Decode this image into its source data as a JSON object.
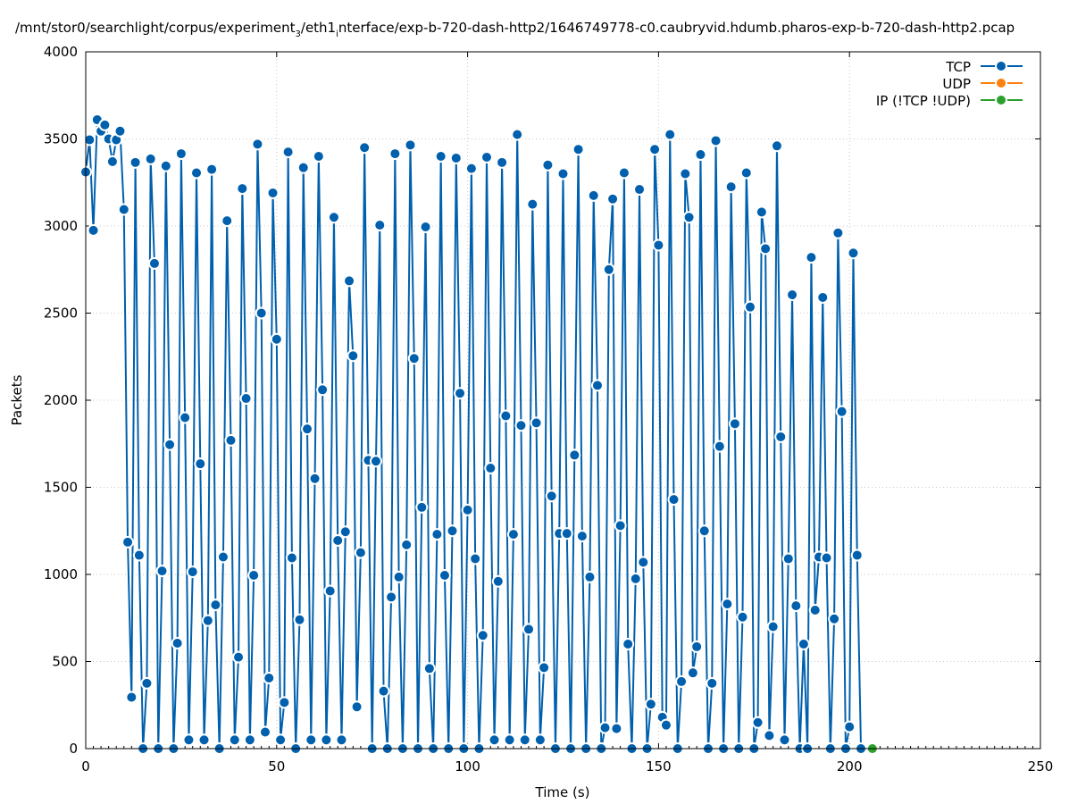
{
  "chart_data": {
    "type": "line",
    "title": "/mnt/stor0/searchlight/corpus/experiment",
    "title_sub": "3",
    "title_after_sub": "/eth1",
    "title_sub2": "i",
    "title_rest": "nterface/exp-b-720-dash-http2/1646749778-c0.caubryvid.hdumb.pharos-exp-b-720-dash-http2.pcap",
    "xlabel": "Time (s)",
    "ylabel": "Packets",
    "xlim": [
      0,
      250
    ],
    "ylim": [
      0,
      4000
    ],
    "xticks": [
      0,
      50,
      100,
      150,
      200,
      250
    ],
    "yticks": [
      0,
      500,
      1000,
      1500,
      2000,
      2500,
      3000,
      3500,
      4000
    ],
    "xtick_labels": [
      "0",
      "50",
      "100",
      "150",
      "200",
      "250"
    ],
    "ytick_labels": [
      "0",
      "500",
      "1000",
      "1500",
      "2000",
      "2500",
      "3000",
      "3500",
      "4000"
    ],
    "grid": true,
    "legend_position": "top-right",
    "series": [
      {
        "name": "TCP",
        "color": "#0060ad",
        "points": [
          [
            0,
            3310
          ],
          [
            1,
            3495
          ],
          [
            2,
            2975
          ],
          [
            3,
            3610
          ],
          [
            4,
            3545
          ],
          [
            5,
            3580
          ],
          [
            6,
            3500
          ],
          [
            7,
            3370
          ],
          [
            8,
            3495
          ],
          [
            9,
            3545
          ],
          [
            10,
            3095
          ],
          [
            11,
            1185
          ],
          [
            12,
            295
          ],
          [
            13,
            3365
          ],
          [
            14,
            1110
          ],
          [
            15,
            0
          ],
          [
            16,
            375
          ],
          [
            17,
            3385
          ],
          [
            18,
            2785
          ],
          [
            19,
            0
          ],
          [
            20,
            1020
          ],
          [
            21,
            3345
          ],
          [
            22,
            1745
          ],
          [
            23,
            0
          ],
          [
            24,
            605
          ],
          [
            25,
            3415
          ],
          [
            26,
            1900
          ],
          [
            27,
            50
          ],
          [
            28,
            1015
          ],
          [
            29,
            3305
          ],
          [
            30,
            1635
          ],
          [
            31,
            50
          ],
          [
            32,
            735
          ],
          [
            33,
            3325
          ],
          [
            34,
            825
          ],
          [
            35,
            0
          ],
          [
            36,
            1100
          ],
          [
            37,
            3030
          ],
          [
            38,
            1770
          ],
          [
            39,
            50
          ],
          [
            40,
            525
          ],
          [
            41,
            3215
          ],
          [
            42,
            2010
          ],
          [
            43,
            50
          ],
          [
            44,
            995
          ],
          [
            45,
            3470
          ],
          [
            46,
            2500
          ],
          [
            47,
            95
          ],
          [
            48,
            405
          ],
          [
            49,
            3190
          ],
          [
            50,
            2350
          ],
          [
            51,
            50
          ],
          [
            52,
            265
          ],
          [
            53,
            3425
          ],
          [
            54,
            1095
          ],
          [
            55,
            0
          ],
          [
            56,
            740
          ],
          [
            57,
            3335
          ],
          [
            58,
            1835
          ],
          [
            59,
            50
          ],
          [
            60,
            1550
          ],
          [
            61,
            3400
          ],
          [
            62,
            2060
          ],
          [
            63,
            50
          ],
          [
            64,
            905
          ],
          [
            65,
            3050
          ],
          [
            66,
            1195
          ],
          [
            67,
            50
          ],
          [
            68,
            1245
          ],
          [
            69,
            2685
          ],
          [
            70,
            2255
          ],
          [
            71,
            240
          ],
          [
            72,
            1125
          ],
          [
            73,
            3450
          ],
          [
            74,
            1655
          ],
          [
            75,
            0
          ],
          [
            76,
            1650
          ],
          [
            77,
            3005
          ],
          [
            78,
            330
          ],
          [
            79,
            0
          ],
          [
            80,
            870
          ],
          [
            81,
            3415
          ],
          [
            82,
            985
          ],
          [
            83,
            0
          ],
          [
            84,
            1170
          ],
          [
            85,
            3465
          ],
          [
            86,
            2240
          ],
          [
            87,
            0
          ],
          [
            88,
            1385
          ],
          [
            89,
            2995
          ],
          [
            90,
            460
          ],
          [
            91,
            0
          ],
          [
            92,
            1230
          ],
          [
            93,
            3400
          ],
          [
            94,
            995
          ],
          [
            95,
            0
          ],
          [
            96,
            1250
          ],
          [
            97,
            3390
          ],
          [
            98,
            2040
          ],
          [
            99,
            0
          ],
          [
            100,
            1370
          ],
          [
            101,
            3330
          ],
          [
            102,
            1090
          ],
          [
            103,
            0
          ],
          [
            104,
            650
          ],
          [
            105,
            3395
          ],
          [
            106,
            1610
          ],
          [
            107,
            50
          ],
          [
            108,
            960
          ],
          [
            109,
            3365
          ],
          [
            110,
            1910
          ],
          [
            111,
            50
          ],
          [
            112,
            1230
          ],
          [
            113,
            3525
          ],
          [
            114,
            1855
          ],
          [
            115,
            50
          ],
          [
            116,
            685
          ],
          [
            117,
            3125
          ],
          [
            118,
            1870
          ],
          [
            119,
            50
          ],
          [
            120,
            465
          ],
          [
            121,
            3350
          ],
          [
            122,
            1450
          ],
          [
            123,
            0
          ],
          [
            124,
            1235
          ],
          [
            125,
            3300
          ],
          [
            126,
            1235
          ],
          [
            127,
            0
          ],
          [
            128,
            1685
          ],
          [
            129,
            3440
          ],
          [
            130,
            1220
          ],
          [
            131,
            0
          ],
          [
            132,
            985
          ],
          [
            133,
            3175
          ],
          [
            134,
            2085
          ],
          [
            135,
            0
          ],
          [
            136,
            120
          ],
          [
            137,
            2750
          ],
          [
            138,
            3155
          ],
          [
            139,
            115
          ],
          [
            140,
            1280
          ],
          [
            141,
            3305
          ],
          [
            142,
            600
          ],
          [
            143,
            0
          ],
          [
            144,
            975
          ],
          [
            145,
            3210
          ],
          [
            146,
            1070
          ],
          [
            147,
            0
          ],
          [
            148,
            255
          ],
          [
            149,
            3440
          ],
          [
            150,
            2890
          ],
          [
            151,
            180
          ],
          [
            152,
            135
          ],
          [
            153,
            3525
          ],
          [
            154,
            1430
          ],
          [
            155,
            0
          ],
          [
            156,
            385
          ],
          [
            157,
            3300
          ],
          [
            158,
            3050
          ],
          [
            159,
            435
          ],
          [
            160,
            585
          ],
          [
            161,
            3410
          ],
          [
            162,
            1250
          ],
          [
            163,
            0
          ],
          [
            164,
            375
          ],
          [
            165,
            3490
          ],
          [
            166,
            1735
          ],
          [
            167,
            0
          ],
          [
            168,
            830
          ],
          [
            169,
            3225
          ],
          [
            170,
            1865
          ],
          [
            171,
            0
          ],
          [
            172,
            755
          ],
          [
            173,
            3305
          ],
          [
            174,
            2535
          ],
          [
            175,
            0
          ],
          [
            176,
            150
          ],
          [
            177,
            3080
          ],
          [
            178,
            2870
          ],
          [
            179,
            75
          ],
          [
            180,
            700
          ],
          [
            181,
            3460
          ],
          [
            182,
            1790
          ],
          [
            183,
            50
          ],
          [
            184,
            1090
          ],
          [
            185,
            2605
          ],
          [
            186,
            820
          ],
          [
            187,
            0
          ],
          [
            188,
            600
          ],
          [
            189,
            0
          ],
          [
            190,
            2820
          ],
          [
            191,
            795
          ],
          [
            192,
            1100
          ],
          [
            193,
            2590
          ],
          [
            194,
            1095
          ],
          [
            195,
            0
          ],
          [
            196,
            745
          ],
          [
            197,
            2960
          ],
          [
            198,
            1935
          ],
          [
            199,
            0
          ],
          [
            200,
            125
          ],
          [
            201,
            2845
          ],
          [
            202,
            1110
          ],
          [
            203,
            0
          ]
        ]
      },
      {
        "name": "UDP",
        "color": "#ff7f0e",
        "points": []
      },
      {
        "name": "IP (!TCP  !UDP)",
        "color": "#2ca02c",
        "points": [
          [
            206,
            0
          ]
        ]
      }
    ]
  }
}
